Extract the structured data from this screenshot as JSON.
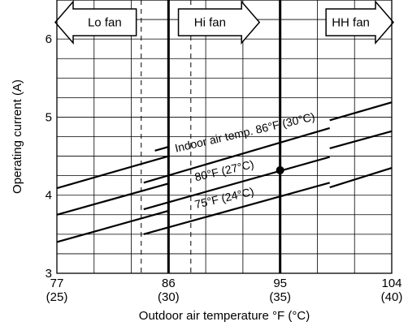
{
  "chart_data": {
    "type": "line",
    "xlabel": "Outdoor air temperature °F (°C)",
    "ylabel": "Operating current (A)",
    "xlim": [
      77,
      104
    ],
    "ylim": [
      3,
      6.5
    ],
    "x_ticks": [
      {
        "value": 77,
        "label": "77",
        "sublabel": "(25)"
      },
      {
        "value": 86,
        "label": "86",
        "sublabel": "(30)"
      },
      {
        "value": 95,
        "label": "95",
        "sublabel": "(35)"
      },
      {
        "value": 104,
        "label": "104",
        "sublabel": "(40)"
      }
    ],
    "y_ticks": [
      {
        "value": 3,
        "label": "3"
      },
      {
        "value": 4,
        "label": "4"
      },
      {
        "value": 5,
        "label": "5"
      },
      {
        "value": 6,
        "label": "6"
      }
    ],
    "grid": true,
    "fan_regions": [
      {
        "label": "Lo fan",
        "x_start": 77,
        "x_end": 83.4,
        "direction": "left"
      },
      {
        "label": "Hi fan",
        "x_start": 86.8,
        "x_end": 93.2,
        "direction": "right"
      },
      {
        "label": "HH fan",
        "x_start": 98.7,
        "x_end": 104,
        "direction": "right"
      }
    ],
    "fan_boundaries": [
      {
        "x": 86,
        "style": "solid"
      },
      {
        "x": 95,
        "style": "solid"
      },
      {
        "x": 83.8,
        "style": "dashed"
      },
      {
        "x": 87.8,
        "style": "dashed"
      }
    ],
    "series": [
      {
        "name": "Indoor air temp. 86°F (30°C)",
        "segments": [
          [
            [
              77,
              4.09
            ],
            [
              86,
              4.5
            ]
          ],
          [
            [
              84.9,
              4.57
            ],
            [
              86,
              4.62
            ]
          ],
          [
            [
              84,
              4.16
            ],
            [
              99,
              4.86
            ]
          ],
          [
            [
              99,
              4.96
            ],
            [
              104,
              5.19
            ]
          ]
        ]
      },
      {
        "name": "80°F (27°C)",
        "segments": [
          [
            [
              77,
              3.75
            ],
            [
              86,
              4.15
            ]
          ],
          [
            [
              84,
              3.82
            ],
            [
              99,
              4.49
            ]
          ],
          [
            [
              99,
              4.6
            ],
            [
              104,
              4.82
            ]
          ]
        ]
      },
      {
        "name": "75°F (24°C)",
        "segments": [
          [
            [
              77,
              3.4
            ],
            [
              86,
              3.8
            ]
          ],
          [
            [
              84,
              3.5
            ],
            [
              99,
              4.16
            ]
          ],
          [
            [
              99,
              4.1
            ],
            [
              104,
              4.35
            ]
          ]
        ]
      }
    ],
    "marker": {
      "x": 95,
      "y": 4.32
    }
  }
}
